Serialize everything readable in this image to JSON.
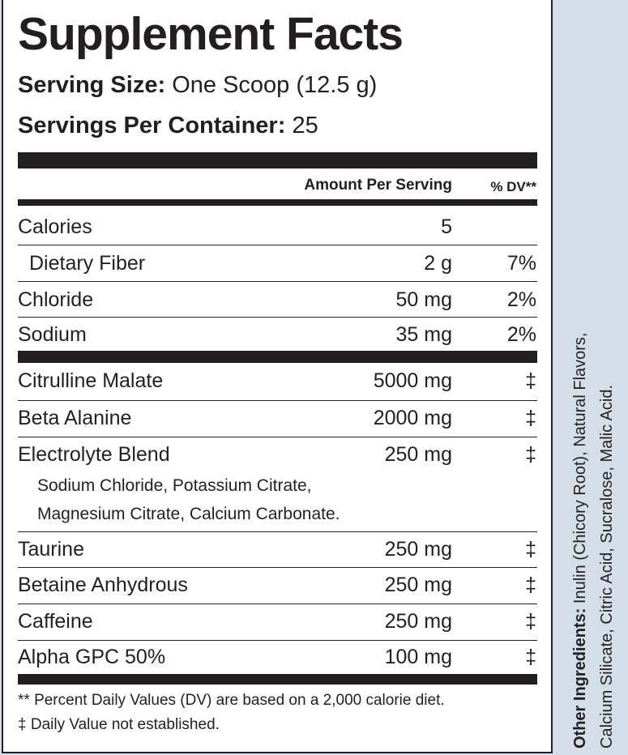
{
  "header": {
    "title": "Supplement Facts",
    "serving_size_label": "Serving Size:",
    "serving_size": "One Scoop (12.5 g)",
    "servings_label": "Servings Per Container:",
    "servings": "25"
  },
  "table": {
    "columns": [
      "Amount Per Serving",
      "% DV**"
    ],
    "rows": [
      {
        "name": "Calories",
        "amount": "5"
      },
      {
        "name": "Dietary Fiber",
        "amount": "2 g",
        "dv": "7%"
      },
      {
        "name": "Chloride",
        "amount": "50 mg",
        "dv": "2%"
      },
      {
        "name": "Sodium",
        "amount": "35 mg",
        "dv": "2%"
      },
      {
        "name": "Citrulline Malate",
        "amount": "5000 mg",
        "dv": "‡"
      },
      {
        "name": "Beta Alanine",
        "amount": "2000 mg",
        "dv": "‡"
      },
      {
        "name": "Electrolyte Blend",
        "amount": "250 mg",
        "dv": "‡",
        "sub": [
          "Sodium Chloride, Potassium Citrate,",
          "Magnesium Citrate, Calcium Carbonate."
        ]
      },
      {
        "name": "Taurine",
        "amount": "250 mg",
        "dv": "‡"
      },
      {
        "name": "Betaine Anhydrous",
        "amount": "250 mg",
        "dv": "‡"
      },
      {
        "name": "Caffeine",
        "amount": "250 mg",
        "dv": "‡"
      },
      {
        "name": "Alpha GPC 50%",
        "amount": "100 mg",
        "dv": "‡"
      }
    ]
  },
  "footnotes": [
    "** Percent Daily Values (DV) are based on a 2,000 calorie diet.",
    "‡ Daily Value not established."
  ],
  "side": {
    "label": "Other Ingredients:",
    "lines": [
      "Inulin (Chicory Root), Natural Flavors,",
      "Calcium Silicate, Citric Acid, Sucralose, Malic Acid."
    ]
  }
}
